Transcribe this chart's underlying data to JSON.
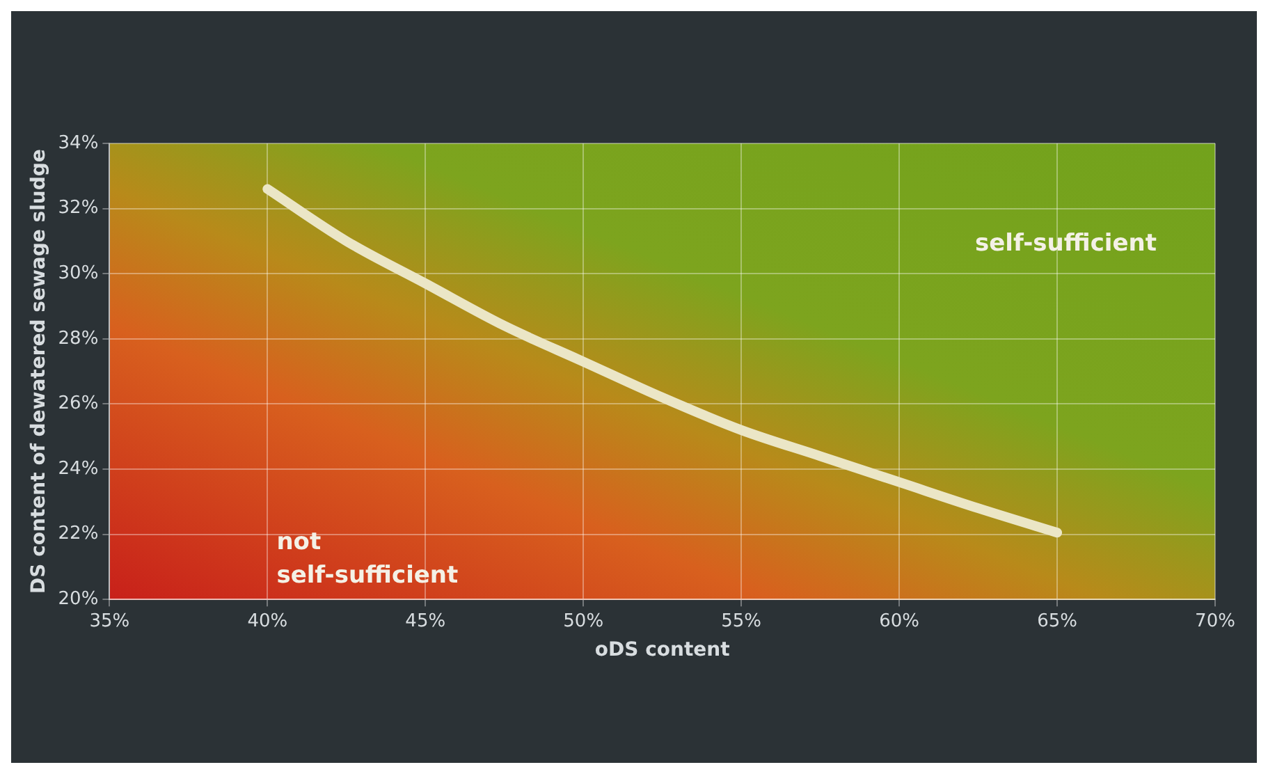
{
  "chart_data": {
    "type": "line",
    "xlabel": "oDS content",
    "ylabel": "DS content of dewatered sewage sludge",
    "x": [
      40,
      42.5,
      45,
      47.5,
      50,
      52.5,
      55,
      57.5,
      60,
      62.5,
      65
    ],
    "series": [
      {
        "color": "#ebe6c6",
        "values": [
          32.6,
          31.0,
          29.7,
          28.4,
          27.3,
          26.2,
          25.2,
          24.4,
          23.6,
          22.8,
          22.05
        ]
      }
    ],
    "xlim": [
      35,
      70
    ],
    "xticks": [
      {
        "value": 35,
        "label": "35%"
      },
      {
        "value": 40,
        "label": "40%"
      },
      {
        "value": 45,
        "label": "45%"
      },
      {
        "value": 50,
        "label": "50%"
      },
      {
        "value": 55,
        "label": "55%"
      },
      {
        "value": 60,
        "label": "60%"
      },
      {
        "value": 65,
        "label": "65%"
      },
      {
        "value": 70,
        "label": "70%"
      }
    ],
    "ylim": [
      20,
      34
    ],
    "yticks": [
      {
        "value": 20,
        "label": "20%"
      },
      {
        "value": 22,
        "label": "22%"
      },
      {
        "value": 24,
        "label": "24%"
      },
      {
        "value": 26,
        "label": "26%"
      },
      {
        "value": 28,
        "label": "28%"
      },
      {
        "value": 30,
        "label": "30%"
      },
      {
        "value": 32,
        "label": "32%"
      },
      {
        "value": 34,
        "label": "34%"
      }
    ],
    "annotations": [
      "not self-sufficient",
      "self-sufficient"
    ],
    "grid": true,
    "marker": "none",
    "line_style": "solid",
    "legend": false
  }
}
